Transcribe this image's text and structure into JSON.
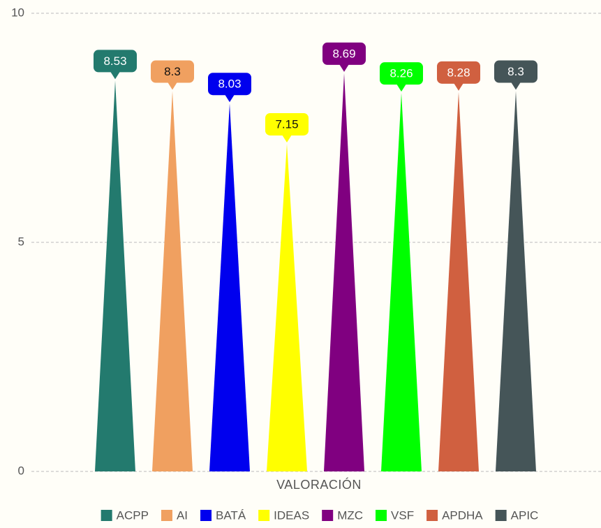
{
  "chart_data": {
    "type": "pyramid-bar",
    "categories": [
      "VALORACIÓN"
    ],
    "series": [
      {
        "name": "ACPP",
        "color": "#237a6e",
        "values": [
          8.53
        ]
      },
      {
        "name": "AI",
        "color": "#f0a060",
        "values": [
          8.3
        ]
      },
      {
        "name": "BATÁ",
        "color": "#0000ee",
        "values": [
          8.03
        ]
      },
      {
        "name": "IDEAS",
        "color": "#ffff00",
        "values": [
          7.15
        ]
      },
      {
        "name": "MZC",
        "color": "#800080",
        "values": [
          8.69
        ]
      },
      {
        "name": "VSF",
        "color": "#00ff00",
        "values": [
          8.26
        ]
      },
      {
        "name": "APDHA",
        "color": "#d06040",
        "values": [
          8.28
        ]
      },
      {
        "name": "APIC",
        "color": "#455558",
        "values": [
          8.3
        ]
      }
    ],
    "ylim": [
      0,
      10
    ],
    "yticks": [
      0,
      5,
      10
    ],
    "grid": true,
    "legend": "bottom"
  }
}
